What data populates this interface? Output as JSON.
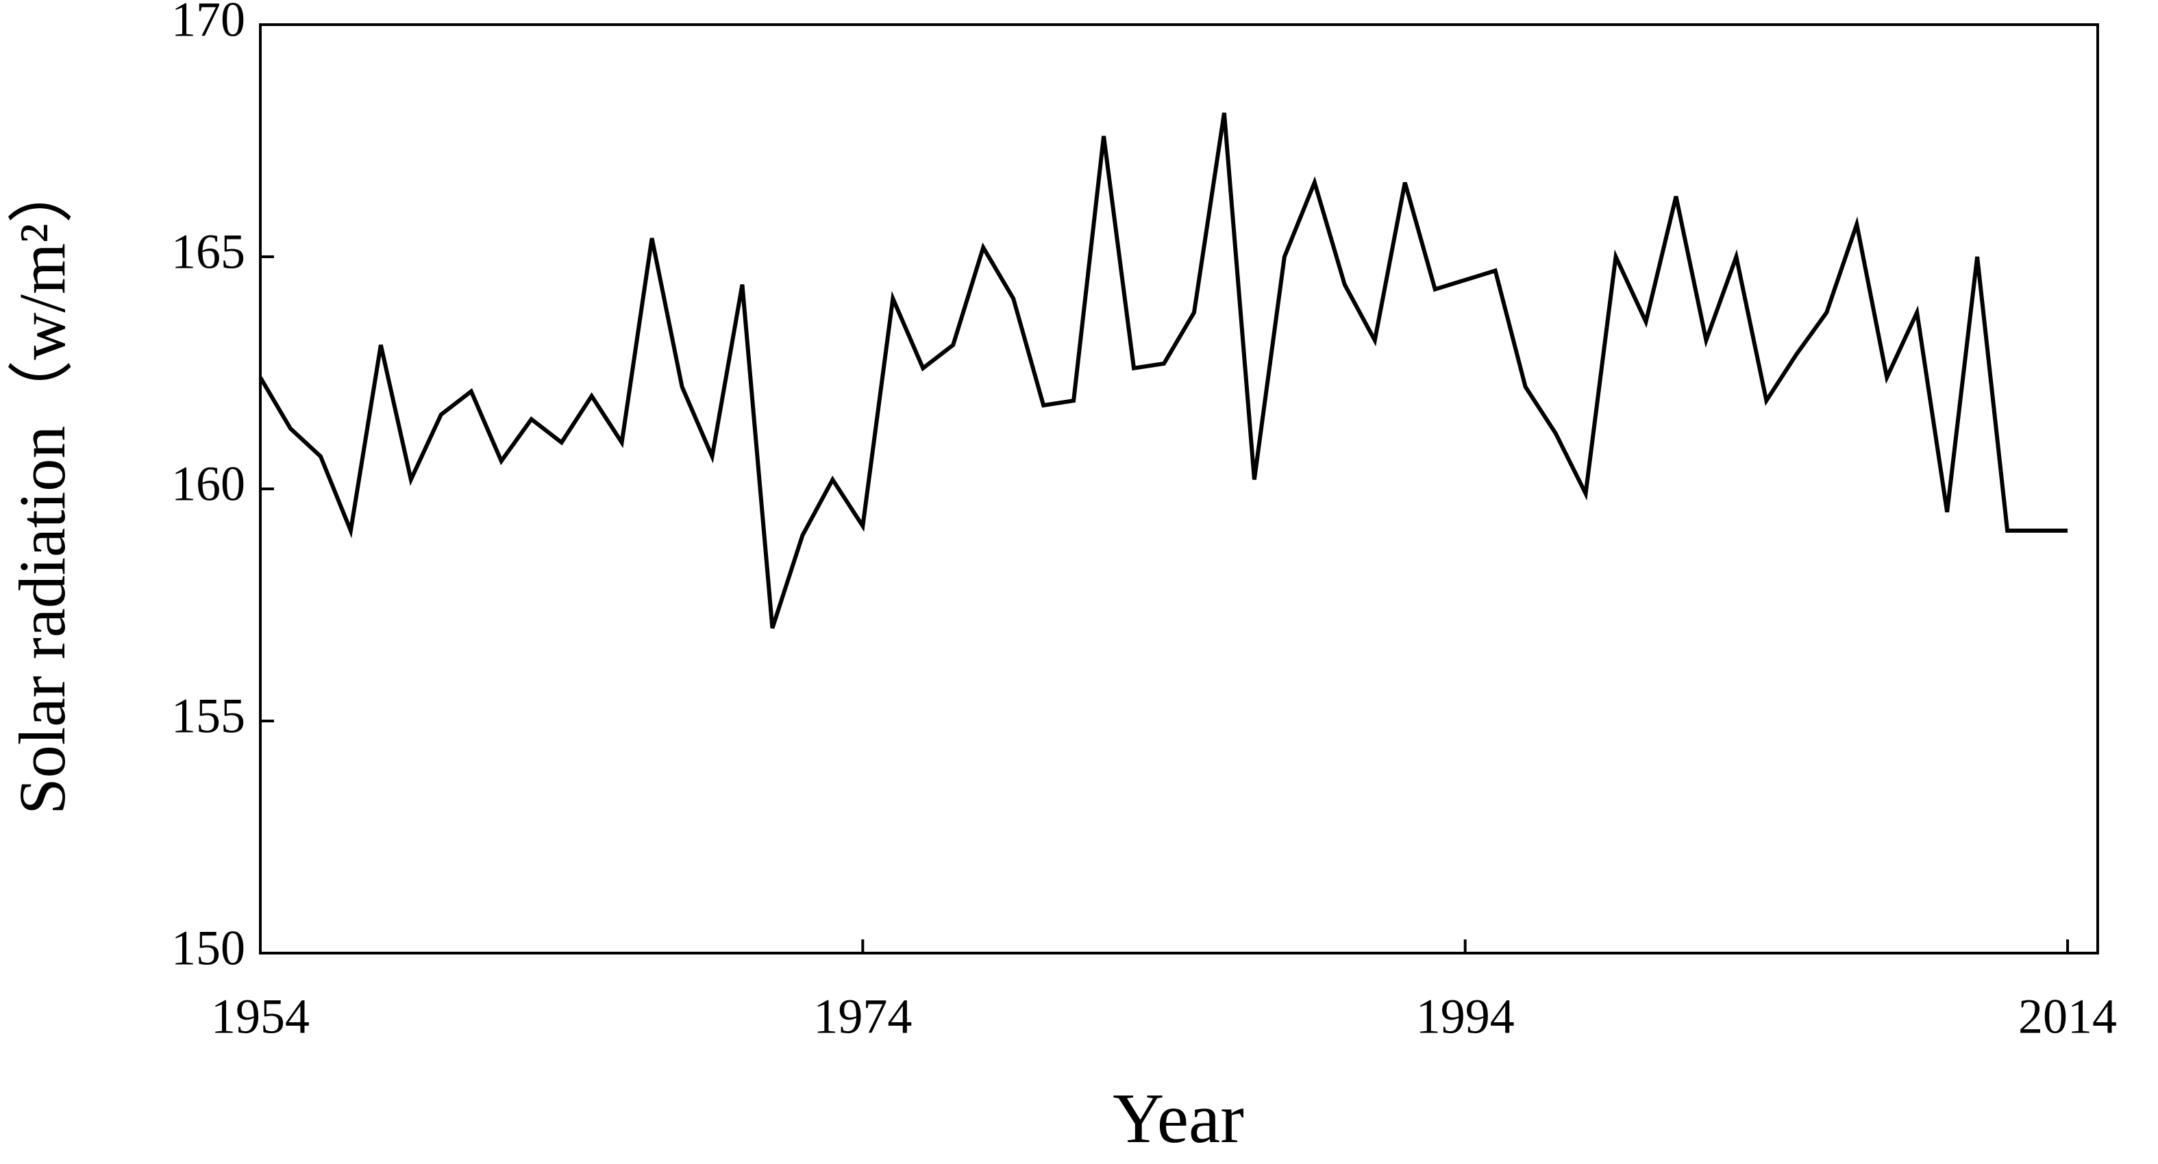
{
  "chart_data": {
    "type": "line",
    "x_label": "Year",
    "y_label": "Solar radiation（w/m²）",
    "x": [
      1954,
      1955,
      1956,
      1957,
      1958,
      1959,
      1960,
      1961,
      1962,
      1963,
      1964,
      1965,
      1966,
      1967,
      1968,
      1969,
      1970,
      1971,
      1972,
      1973,
      1974,
      1975,
      1976,
      1977,
      1978,
      1979,
      1980,
      1981,
      1982,
      1983,
      1984,
      1985,
      1986,
      1987,
      1988,
      1989,
      1990,
      1991,
      1992,
      1993,
      1994,
      1995,
      1996,
      1997,
      1998,
      1999,
      2000,
      2001,
      2002,
      2003,
      2004,
      2005,
      2006,
      2007,
      2008,
      2009,
      2010,
      2011,
      2012,
      2013,
      2014
    ],
    "values": [
      162.4,
      161.3,
      160.7,
      159.1,
      163.1,
      160.2,
      161.6,
      162.1,
      160.6,
      161.5,
      161.0,
      162.0,
      161.0,
      165.4,
      162.2,
      160.7,
      164.4,
      157.0,
      159.0,
      160.2,
      159.2,
      164.1,
      162.6,
      163.1,
      165.2,
      164.1,
      161.8,
      161.9,
      167.6,
      162.6,
      162.7,
      163.8,
      168.1,
      160.2,
      165.0,
      166.6,
      164.4,
      163.2,
      166.6,
      164.3,
      164.5,
      164.7,
      162.2,
      161.2,
      159.9,
      165.0,
      163.6,
      166.3,
      163.2,
      165.0,
      161.9,
      162.9,
      163.8,
      165.7,
      162.4,
      163.8,
      159.5,
      165.0,
      159.1,
      159.1,
      159.1
    ],
    "color": "#000000",
    "xlim": [
      1954,
      2015
    ],
    "xticks": [
      1954,
      1974,
      1994,
      2014
    ],
    "ylim": [
      150,
      170
    ],
    "yticks": [
      150,
      155,
      160,
      165,
      170
    ]
  }
}
